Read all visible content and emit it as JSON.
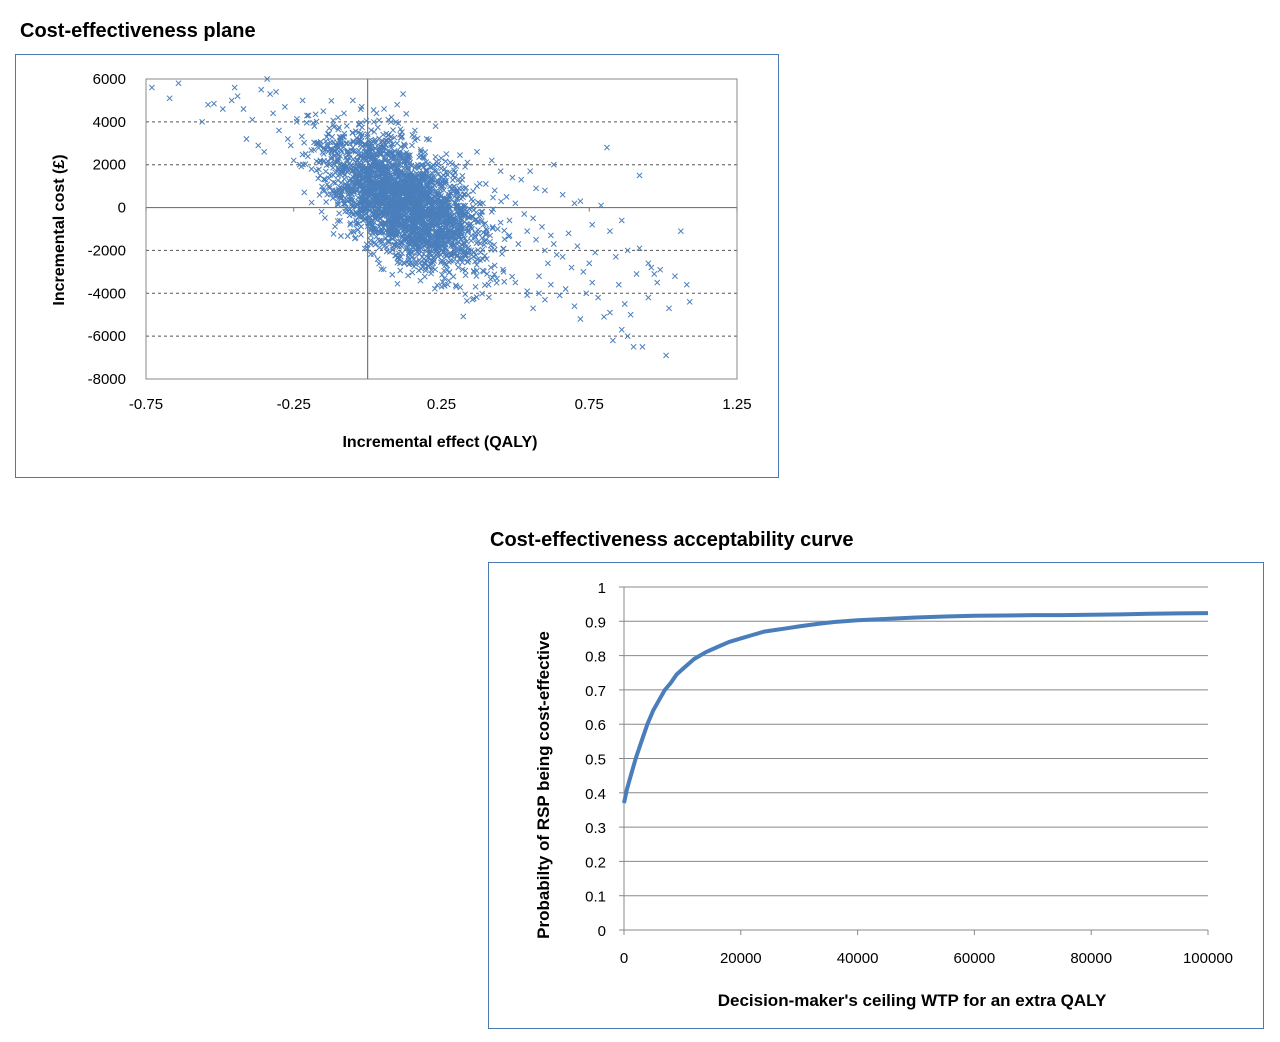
{
  "chart_data": [
    {
      "type": "scatter",
      "title": "Cost-effectiveness plane",
      "xlabel": "Incremental effect (QALY)",
      "ylabel": "Incremental cost  (£)",
      "xlim": [
        -0.75,
        1.25
      ],
      "ylim": [
        -8000,
        6000
      ],
      "x_ticks": [
        -0.75,
        -0.25,
        0.25,
        0.75,
        1.25
      ],
      "x_tick_labels": [
        "-0.75",
        "-0.25",
        "0.25",
        "0.75",
        "1.25"
      ],
      "y_ticks": [
        6000,
        4000,
        2000,
        0,
        -2000,
        -4000,
        -6000,
        -8000
      ],
      "y_tick_labels": [
        "6000",
        "4000",
        "2000",
        "0",
        "-2000",
        "-4000",
        "-6000",
        "-8000"
      ],
      "grid": "dashed horizontal",
      "marker": "x",
      "color": "#4a7ebb",
      "points": [
        [
          -0.73,
          5600
        ],
        [
          -0.67,
          5100
        ],
        [
          -0.64,
          5800
        ],
        [
          -0.56,
          4000
        ],
        [
          -0.54,
          4800
        ],
        [
          -0.52,
          4850
        ],
        [
          -0.49,
          4600
        ],
        [
          -0.46,
          5000
        ],
        [
          -0.45,
          5600
        ],
        [
          -0.44,
          5200
        ],
        [
          -0.42,
          4600
        ],
        [
          -0.41,
          3200
        ],
        [
          -0.39,
          4100
        ],
        [
          -0.37,
          2900
        ],
        [
          -0.36,
          5500
        ],
        [
          -0.35,
          2600
        ],
        [
          -0.34,
          6000
        ],
        [
          -0.33,
          5300
        ],
        [
          -0.32,
          4400
        ],
        [
          -0.31,
          5400
        ],
        [
          -0.3,
          3600
        ],
        [
          -0.28,
          4700
        ],
        [
          -0.27,
          3200
        ],
        [
          -0.26,
          2900
        ],
        [
          -0.24,
          4000
        ],
        [
          -0.22,
          5000
        ],
        [
          -0.2,
          4300
        ],
        [
          -0.18,
          3800
        ],
        [
          -0.17,
          3000
        ],
        [
          -0.15,
          4500
        ],
        [
          -0.13,
          3700
        ],
        [
          -0.12,
          3300
        ],
        [
          -0.1,
          4200
        ],
        [
          -0.08,
          4400
        ],
        [
          -0.06,
          3000
        ],
        [
          -0.05,
          5000
        ],
        [
          -0.03,
          3900
        ],
        [
          -0.02,
          4700
        ],
        [
          -0.04,
          2100
        ],
        [
          -0.07,
          1900
        ],
        [
          -0.09,
          2700
        ],
        [
          -0.16,
          2200
        ],
        [
          -0.21,
          2500
        ],
        [
          -0.25,
          2200
        ],
        [
          -0.23,
          2000
        ],
        [
          -0.19,
          1800
        ],
        [
          0.01,
          2000
        ],
        [
          0.03,
          4400
        ],
        [
          0.07,
          4100
        ],
        [
          0.1,
          4800
        ],
        [
          0.12,
          5300
        ],
        [
          0.16,
          3600
        ],
        [
          0.2,
          3200
        ],
        [
          0.23,
          3800
        ],
        [
          0.28,
          2100
        ],
        [
          0.33,
          1900
        ],
        [
          0.37,
          2600
        ],
        [
          0.42,
          2200
        ],
        [
          0.45,
          1700
        ],
        [
          0.49,
          1400
        ],
        [
          0.52,
          1300
        ],
        [
          0.55,
          1700
        ],
        [
          0.57,
          900
        ],
        [
          0.6,
          800
        ],
        [
          0.63,
          2000
        ],
        [
          0.66,
          600
        ],
        [
          0.7,
          200
        ],
        [
          0.72,
          300
        ],
        [
          0.79,
          100
        ],
        [
          0.81,
          2800
        ],
        [
          0.92,
          1500
        ],
        [
          1.06,
          -1100
        ],
        [
          0.86,
          -600
        ],
        [
          0.82,
          -1100
        ],
        [
          0.76,
          -800
        ],
        [
          0.71,
          -1800
        ],
        [
          0.68,
          -1200
        ],
        [
          0.64,
          -2200
        ],
        [
          0.61,
          -2600
        ],
        [
          0.58,
          -3200
        ],
        [
          0.54,
          -3900
        ],
        [
          0.5,
          -3500
        ],
        [
          0.46,
          -3000
        ],
        [
          0.43,
          -2700
        ],
        [
          0.39,
          -2400
        ],
        [
          0.36,
          -3000
        ],
        [
          0.3,
          -3700
        ],
        [
          0.26,
          -3300
        ],
        [
          0.22,
          -2800
        ],
        [
          0.19,
          -2400
        ],
        [
          0.14,
          -2100
        ],
        [
          0.1,
          -1800
        ],
        [
          0.05,
          -1600
        ],
        [
          0.01,
          -1700
        ],
        [
          -0.04,
          -600
        ],
        [
          -0.02,
          -200
        ],
        [
          0.72,
          -5200
        ],
        [
          0.74,
          -4000
        ],
        [
          0.76,
          -3500
        ],
        [
          0.78,
          -4200
        ],
        [
          0.8,
          -5100
        ],
        [
          0.82,
          -4900
        ],
        [
          0.83,
          -6200
        ],
        [
          0.85,
          -3600
        ],
        [
          0.86,
          -5700
        ],
        [
          0.87,
          -4500
        ],
        [
          0.88,
          -6000
        ],
        [
          0.89,
          -5000
        ],
        [
          0.9,
          -6500
        ],
        [
          0.91,
          -3100
        ],
        [
          0.93,
          -6500
        ],
        [
          0.95,
          -4200
        ],
        [
          0.96,
          -2800
        ],
        [
          0.98,
          -3500
        ],
        [
          0.99,
          -2900
        ],
        [
          1.01,
          -6900
        ],
        [
          1.02,
          -4700
        ],
        [
          1.04,
          -3200
        ],
        [
          1.08,
          -3600
        ],
        [
          1.09,
          -4400
        ],
        [
          0.84,
          -2300
        ],
        [
          0.88,
          -2000
        ],
        [
          0.92,
          -1900
        ],
        [
          0.95,
          -2600
        ],
        [
          0.97,
          -3100
        ],
        [
          0.65,
          -4100
        ],
        [
          0.6,
          -4300
        ],
        [
          0.56,
          -4700
        ],
        [
          0.67,
          -3800
        ],
        [
          0.7,
          -4600
        ],
        [
          0.62,
          -3600
        ],
        [
          0.58,
          -4000
        ],
        [
          0.4,
          -1500
        ],
        [
          0.44,
          -1000
        ],
        [
          0.48,
          -600
        ],
        [
          0.35,
          -900
        ],
        [
          0.31,
          -1400
        ],
        [
          0.27,
          -800
        ],
        [
          0.24,
          -1500
        ],
        [
          0.2,
          -1100
        ],
        [
          0.17,
          -500
        ],
        [
          0.13,
          -900
        ],
        [
          0.09,
          -300
        ],
        [
          0.06,
          -700
        ],
        [
          0.03,
          300
        ],
        [
          0.0,
          800
        ],
        [
          -0.03,
          1200
        ],
        [
          0.02,
          1600
        ],
        [
          0.06,
          2200
        ],
        [
          0.09,
          1900
        ],
        [
          0.12,
          1500
        ],
        [
          0.15,
          1100
        ],
        [
          0.18,
          700
        ],
        [
          0.21,
          300
        ],
        [
          0.24,
          -100
        ],
        [
          0.27,
          400
        ],
        [
          0.3,
          100
        ],
        [
          0.33,
          -300
        ],
        [
          0.36,
          -600
        ],
        [
          0.39,
          200
        ],
        [
          0.42,
          -200
        ],
        [
          0.45,
          -700
        ],
        [
          0.48,
          -1300
        ],
        [
          0.51,
          -1700
        ],
        [
          0.54,
          -1100
        ],
        [
          0.57,
          -1500
        ],
        [
          0.6,
          -2000
        ],
        [
          0.63,
          -1700
        ],
        [
          0.05,
          3100
        ],
        [
          0.08,
          2800
        ],
        [
          0.11,
          2600
        ],
        [
          0.14,
          2400
        ],
        [
          0.17,
          2000
        ],
        [
          0.19,
          1600
        ],
        [
          0.22,
          1300
        ],
        [
          0.25,
          1000
        ],
        [
          0.28,
          700
        ],
        [
          0.31,
          900
        ],
        [
          0.34,
          600
        ],
        [
          0.37,
          1000
        ],
        [
          -0.01,
          2600
        ],
        [
          0.04,
          2500
        ],
        [
          0.0,
          3300
        ],
        [
          -0.05,
          2800
        ],
        [
          0.07,
          3400
        ],
        [
          0.1,
          3000
        ],
        [
          0.15,
          2900
        ],
        [
          0.18,
          2700
        ],
        [
          0.26,
          1800
        ],
        [
          0.29,
          1500
        ],
        [
          0.32,
          1300
        ],
        [
          0.4,
          1100
        ],
        [
          0.43,
          800
        ],
        [
          0.47,
          500
        ],
        [
          0.5,
          200
        ],
        [
          0.53,
          -300
        ],
        [
          0.56,
          -500
        ],
        [
          0.59,
          -900
        ],
        [
          0.62,
          -1300
        ],
        [
          0.66,
          -2300
        ],
        [
          0.69,
          -2800
        ],
        [
          0.73,
          -3000
        ],
        [
          0.75,
          -2600
        ],
        [
          0.77,
          -2100
        ]
      ],
      "dense_cluster": {
        "center": [
          0.13,
          200
        ],
        "spread": [
          0.13,
          1300
        ],
        "count": 2600,
        "slope": -6000
      }
    },
    {
      "type": "line",
      "title": "Cost-effectiveness acceptability curve",
      "xlabel": "Decision-maker's ceiling WTP for an extra QALY",
      "ylabel": "Probabilty of RSP being cost-effective",
      "xlim": [
        0,
        100000
      ],
      "ylim": [
        0,
        1
      ],
      "x_ticks": [
        0,
        20000,
        40000,
        60000,
        80000,
        100000
      ],
      "x_tick_labels": [
        "0",
        "20000",
        "40000",
        "60000",
        "80000",
        "100000"
      ],
      "y_ticks": [
        0,
        0.1,
        0.2,
        0.3,
        0.4,
        0.5,
        0.6,
        0.7,
        0.8,
        0.9,
        1
      ],
      "y_tick_labels": [
        "0",
        "0.1",
        "0.2",
        "0.3",
        "0.4",
        "0.5",
        "0.6",
        "0.7",
        "0.8",
        "0.9",
        "1"
      ],
      "grid": "solid horizontal",
      "color": "#4a7ebb",
      "series": [
        {
          "x": [
            0,
            500,
            1000,
            2000,
            3000,
            4000,
            5000,
            6000,
            7000,
            8000,
            9000,
            10000,
            12000,
            14000,
            16000,
            18000,
            20000,
            22000,
            24000,
            26000,
            28000,
            30000,
            33000,
            36000,
            40000,
            45000,
            50000,
            55000,
            60000,
            65000,
            70000,
            75000,
            80000,
            85000,
            90000,
            95000,
            100000
          ],
          "y": [
            0.37,
            0.41,
            0.44,
            0.5,
            0.55,
            0.6,
            0.64,
            0.67,
            0.7,
            0.72,
            0.745,
            0.76,
            0.79,
            0.81,
            0.825,
            0.84,
            0.85,
            0.86,
            0.87,
            0.875,
            0.88,
            0.885,
            0.892,
            0.898,
            0.903,
            0.907,
            0.911,
            0.914,
            0.916,
            0.917,
            0.918,
            0.918,
            0.919,
            0.92,
            0.922,
            0.923,
            0.924
          ]
        }
      ]
    }
  ]
}
